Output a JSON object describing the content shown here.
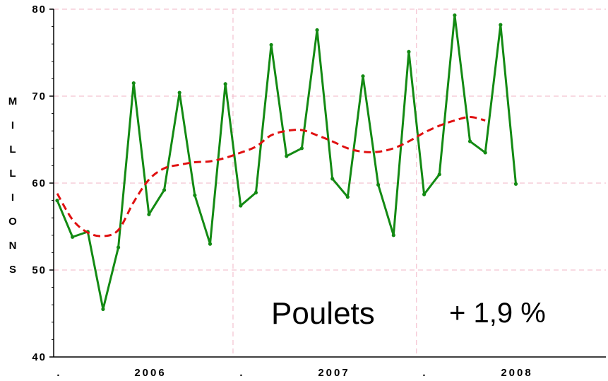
{
  "chart_data": {
    "type": "line",
    "ylabel": "MILLIONS",
    "ylim": [
      40,
      80
    ],
    "y_ticks": [
      "40",
      "50",
      "60",
      "70",
      "80"
    ],
    "x_tick_labels": [
      ".",
      "2006",
      ".",
      "2007",
      ".",
      "2008"
    ],
    "grid": true,
    "annotations": {
      "label": "Poulets",
      "change": "+ 1,9 %"
    },
    "series": [
      {
        "role": "monthly",
        "color": "#138a13",
        "x": [
          0,
          1,
          2,
          3,
          4,
          5,
          6,
          7,
          8,
          9,
          10,
          11,
          12,
          13,
          14,
          15,
          16,
          17,
          18,
          19,
          20,
          21,
          22,
          23,
          24,
          25,
          26,
          27,
          28,
          29,
          30
        ],
        "values": [
          58.0,
          53.8,
          54.4,
          45.5,
          52.6,
          71.5,
          56.4,
          59.2,
          70.4,
          58.6,
          53.0,
          71.4,
          57.4,
          58.9,
          75.9,
          63.1,
          64.0,
          77.6,
          60.5,
          58.4,
          72.3,
          59.8,
          54.0,
          75.1,
          58.7,
          61.0,
          79.3,
          64.8,
          63.5,
          78.2,
          59.9
        ]
      },
      {
        "role": "trend",
        "color": "#e01010",
        "x": [
          0,
          1,
          2,
          3,
          4,
          5,
          6,
          7,
          8,
          9,
          10,
          11,
          12,
          13,
          14,
          15,
          16,
          17,
          18,
          19,
          20,
          21,
          22,
          23,
          24,
          25,
          26,
          27,
          28
        ],
        "values": [
          58.8,
          55.8,
          54.3,
          53.9,
          54.6,
          57.8,
          60.4,
          61.7,
          62.1,
          62.4,
          62.5,
          62.9,
          63.5,
          64.2,
          65.5,
          66.0,
          66.1,
          65.5,
          64.8,
          64.0,
          63.6,
          63.6,
          64.0,
          64.8,
          65.8,
          66.6,
          67.2,
          67.6,
          67.2
        ]
      }
    ]
  }
}
